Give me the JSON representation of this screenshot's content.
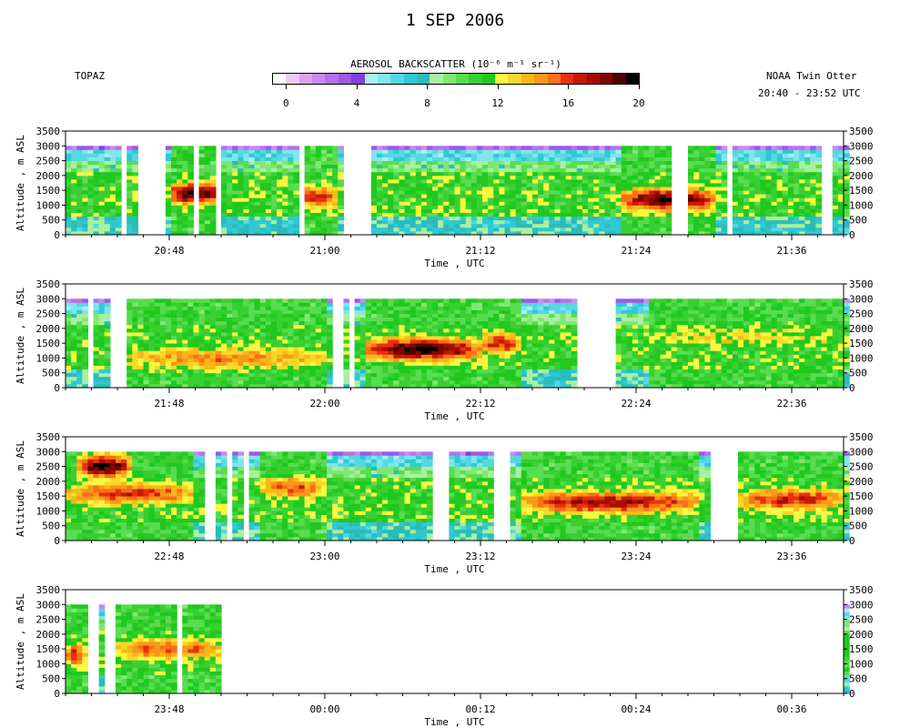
{
  "header": {
    "date": "1 SEP 2006",
    "instrument": "TOPAZ",
    "platform": "NOAA Twin Otter",
    "time_range": "20:40 - 23:52 UTC"
  },
  "colorbar": {
    "title": "AEROSOL BACKSCATTER (10⁻⁶ m⁻¹ sr⁻¹)",
    "ticks": [
      "0",
      "4",
      "8",
      "12",
      "16",
      "20"
    ],
    "min": 0,
    "max": 20,
    "colors": [
      "#ffffff",
      "#f0c8f8",
      "#e0a0f0",
      "#cc88ee",
      "#b870ea",
      "#9e58e6",
      "#8040dd",
      "#a8f0f4",
      "#7ee6ec",
      "#55d8e2",
      "#30c8d2",
      "#2abcb8",
      "#a8f0a0",
      "#80e870",
      "#58dc50",
      "#38d030",
      "#20c820",
      "#f8f840",
      "#f8d828",
      "#f8b818",
      "#f89818",
      "#f87018",
      "#e83010",
      "#c81808",
      "#a80c04",
      "#7c0800",
      "#4a0400",
      "#000000"
    ]
  },
  "chart_data": [
    {
      "type": "heatmap",
      "title": "",
      "xlabel": "Time , UTC",
      "ylabel": "Altitude , m ASL",
      "xlim": [
        "20:40",
        "21:40"
      ],
      "ylim": [
        0,
        3500
      ],
      "y_ticks": [
        "0",
        "500",
        "1000",
        "1500",
        "2000",
        "2500",
        "3000",
        "3500"
      ],
      "x_ticks": [
        "20:48",
        "21:00",
        "21:12",
        "21:24",
        "21:36"
      ],
      "data_gaps": [
        [
          "20:40",
          "20:40.2"
        ],
        [
          "20:41.5",
          "20:41.9"
        ],
        [
          "20:44.3",
          "20:44.6"
        ],
        [
          "20:45.4",
          "20:47.9"
        ],
        [
          "20:49.8",
          "20:50.2"
        ],
        [
          "20:51.4",
          "20:51.8"
        ],
        [
          "20:53.8",
          "20:53.9"
        ],
        [
          "20:58.2",
          "20:58.5"
        ],
        [
          "21:01.5",
          "21:03.5"
        ],
        [
          "21:26.8",
          "21:28.0"
        ],
        [
          "21:31.2",
          "21:31.4"
        ],
        [
          "21:38.2",
          "21:39.1"
        ]
      ],
      "features": [
        {
          "type": "aerosol_layer",
          "start": "21:23",
          "end": "21:30",
          "altitude_m": 1200,
          "peak_backscatter": 20
        },
        {
          "type": "aerosol_layer",
          "start": "20:48",
          "end": "20:52",
          "altitude_m": 1400,
          "peak_backscatter": 20
        },
        {
          "type": "aerosol_layer",
          "start": "20:58",
          "end": "21:01",
          "altitude_m": 1300,
          "peak_backscatter": 17
        },
        {
          "type": "aerosol_layer",
          "start": "21:25",
          "end": "21:30",
          "altitude_m": 1300,
          "peak_backscatter": 16
        }
      ]
    },
    {
      "type": "heatmap",
      "title": "",
      "xlabel": "Time , UTC",
      "ylabel": "Altitude , m ASL",
      "xlim": [
        "21:40",
        "22:40"
      ],
      "ylim": [
        0,
        3500
      ],
      "y_ticks": [
        "0",
        "500",
        "1000",
        "1500",
        "2000",
        "2500",
        "3000",
        "3500"
      ],
      "x_ticks": [
        "21:48",
        "22:00",
        "22:12",
        "22:24",
        "22:36"
      ],
      "data_gaps": [
        [
          "21:41.7",
          "21:42.1"
        ],
        [
          "21:43.3",
          "21:44.5"
        ],
        [
          "22:00.6",
          "22:01.4"
        ],
        [
          "22:01.9",
          "22:02.2"
        ],
        [
          "22:19.6",
          "22:22.4"
        ]
      ],
      "features": [
        {
          "type": "aerosol_layer",
          "start": "22:03",
          "end": "22:12",
          "altitude_m": 1300,
          "peak_backscatter": 20
        },
        {
          "type": "aerosol_layer",
          "start": "22:12",
          "end": "22:15",
          "altitude_m": 1500,
          "peak_backscatter": 17
        },
        {
          "type": "aerosol_layer",
          "start": "21:44",
          "end": "22:00",
          "altitude_m": 1000,
          "peak_backscatter": 15
        },
        {
          "type": "aerosol_layer",
          "start": "22:25",
          "end": "22:40",
          "altitude_m": 1700,
          "peak_backscatter": 13
        }
      ]
    },
    {
      "type": "heatmap",
      "title": "",
      "xlabel": "Time , UTC",
      "ylabel": "Altitude , m ASL",
      "xlim": [
        "22:40",
        "23:40"
      ],
      "ylim": [
        0,
        3500
      ],
      "y_ticks": [
        "0",
        "500",
        "1000",
        "1500",
        "2000",
        "2500",
        "3000",
        "3500"
      ],
      "x_ticks": [
        "22:48",
        "23:00",
        "23:12",
        "23:24",
        "23:36"
      ],
      "data_gaps": [
        [
          "22:50.7",
          "22:51.7"
        ],
        [
          "22:52.5",
          "22:53.0"
        ],
        [
          "22:53.6",
          "22:54.0"
        ],
        [
          "23:08.4",
          "23:09.5"
        ],
        [
          "23:13.0",
          "23:14.1"
        ],
        [
          "23:29.5",
          "23:31.7"
        ]
      ],
      "features": [
        {
          "type": "aerosol_layer",
          "start": "22:41",
          "end": "22:45",
          "altitude_m": 2500,
          "peak_backscatter": 20
        },
        {
          "type": "aerosol_layer",
          "start": "22:40",
          "end": "22:50",
          "altitude_m": 1600,
          "peak_backscatter": 17
        },
        {
          "type": "aerosol_layer",
          "start": "22:55",
          "end": "23:00",
          "altitude_m": 1800,
          "peak_backscatter": 16
        },
        {
          "type": "aerosol_layer",
          "start": "23:15",
          "end": "23:29",
          "altitude_m": 1300,
          "peak_backscatter": 18
        },
        {
          "type": "aerosol_layer",
          "start": "23:32",
          "end": "23:40",
          "altitude_m": 1400,
          "peak_backscatter": 17
        }
      ]
    },
    {
      "type": "heatmap",
      "title": "",
      "xlabel": "Time , UTC",
      "ylabel": "Altitude , m ASL",
      "xlim": [
        "23:40",
        "00:40"
      ],
      "ylim": [
        0,
        3500
      ],
      "y_ticks": [
        "0",
        "500",
        "1000",
        "1500",
        "2000",
        "2500",
        "3000",
        "3500"
      ],
      "x_ticks": [
        "23:48",
        "00:00",
        "00:12",
        "00:24",
        "00:36"
      ],
      "data_gaps": [
        [
          "23:41.5",
          "23:42.6"
        ],
        [
          "23:42.9",
          "23:43.8"
        ],
        [
          "23:48.6",
          "23:49.0"
        ],
        [
          "23:52",
          "00:40"
        ]
      ],
      "features": [
        {
          "type": "aerosol_layer",
          "start": "23:40",
          "end": "23:41.5",
          "altitude_m": 1300,
          "peak_backscatter": 17
        },
        {
          "type": "aerosol_layer",
          "start": "23:43.8",
          "end": "23:52",
          "altitude_m": 1500,
          "peak_backscatter": 16
        }
      ]
    }
  ]
}
